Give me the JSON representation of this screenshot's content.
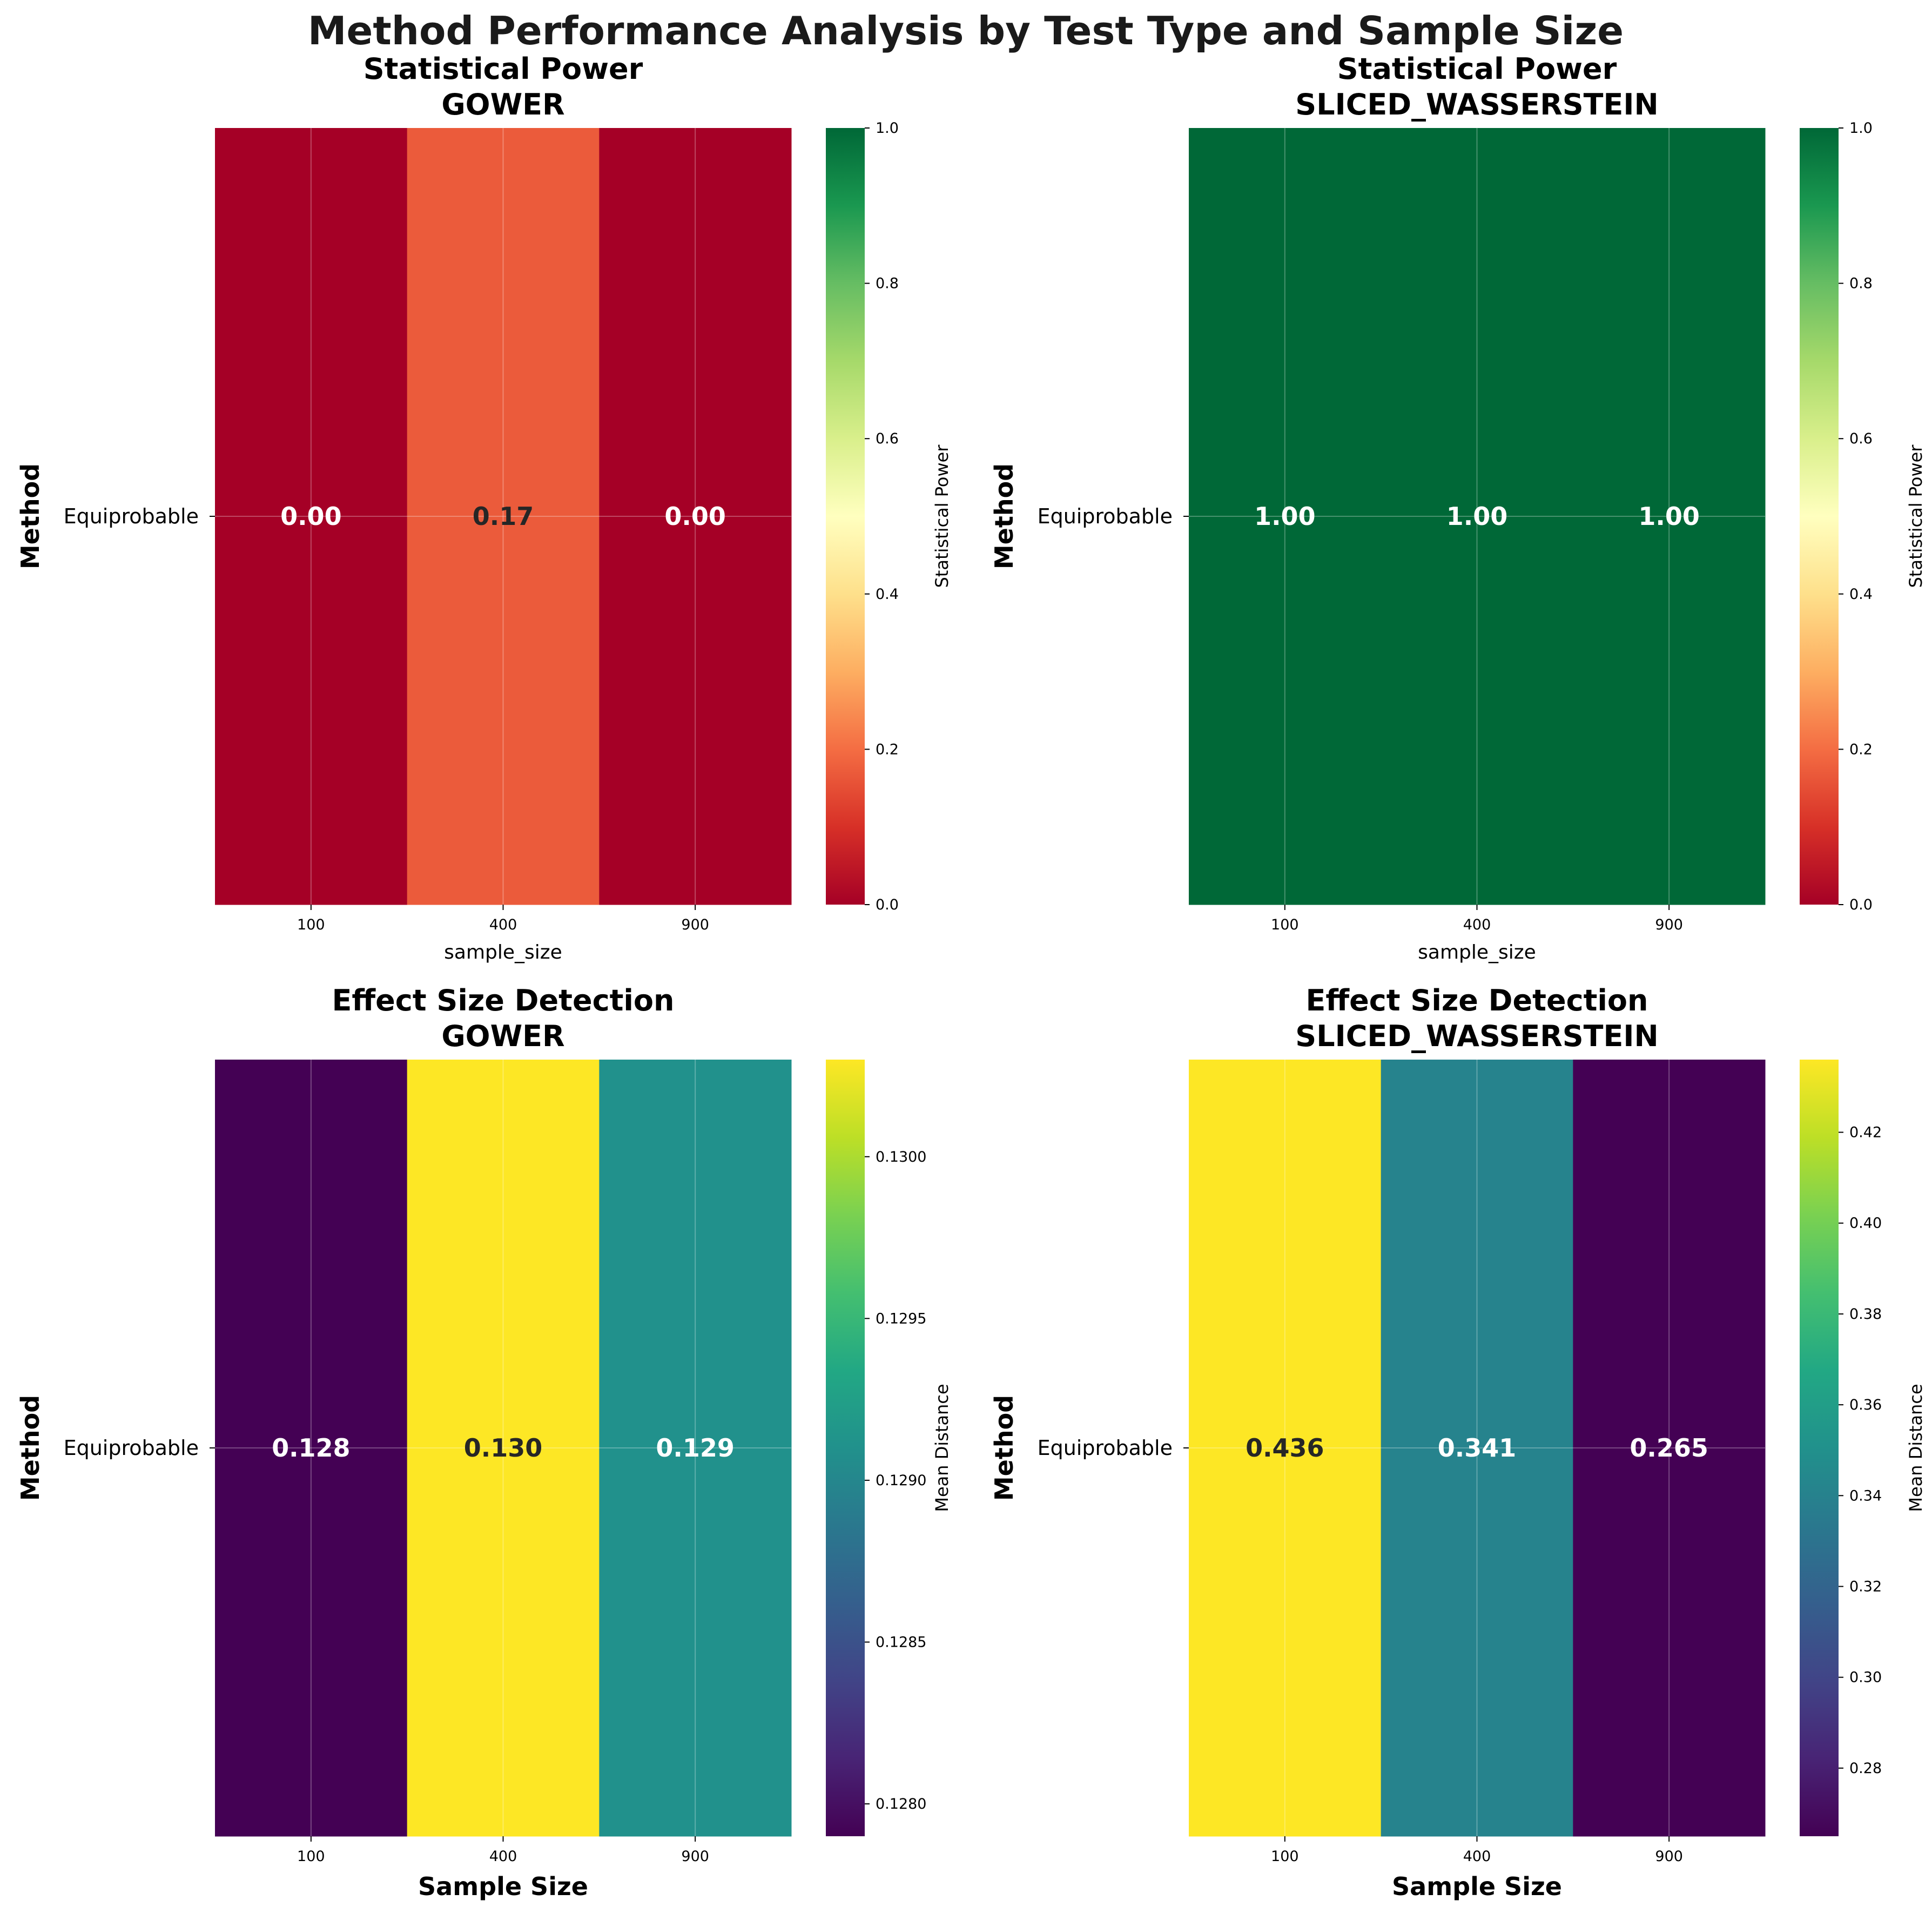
{
  "suptitle": "Method Performance Analysis by Test Type and Sample Size",
  "chart_data": [
    {
      "type": "heatmap",
      "title_line1": "Statistical Power",
      "title_line2": "GOWER",
      "ylabel": "Method",
      "xlabel": "sample_size",
      "xlabel_style": "small",
      "rows": [
        "Equiprobable"
      ],
      "columns": [
        "100",
        "400",
        "900"
      ],
      "values": [
        [
          0.0,
          0.17,
          0.0
        ]
      ],
      "labels": [
        "0.00",
        "0.17",
        "0.00"
      ],
      "colormap": "RdYlGn",
      "vmin": 0.0,
      "vmax": 1.0,
      "colorbar_label": "Statistical Power",
      "colorbar_ticks": [
        "0.0",
        "0.2",
        "0.4",
        "0.6",
        "0.8",
        "1.0"
      ],
      "colorbar_tick_values": [
        0.0,
        0.2,
        0.4,
        0.6,
        0.8,
        1.0
      ]
    },
    {
      "type": "heatmap",
      "title_line1": "Statistical Power",
      "title_line2": "SLICED_WASSERSTEIN",
      "ylabel": "Method",
      "xlabel": "sample_size",
      "xlabel_style": "small",
      "rows": [
        "Equiprobable"
      ],
      "columns": [
        "100",
        "400",
        "900"
      ],
      "values": [
        [
          1.0,
          1.0,
          1.0
        ]
      ],
      "labels": [
        "1.00",
        "1.00",
        "1.00"
      ],
      "colormap": "RdYlGn",
      "vmin": 0.0,
      "vmax": 1.0,
      "colorbar_label": "Statistical Power",
      "colorbar_ticks": [
        "0.0",
        "0.2",
        "0.4",
        "0.6",
        "0.8",
        "1.0"
      ],
      "colorbar_tick_values": [
        0.0,
        0.2,
        0.4,
        0.6,
        0.8,
        1.0
      ]
    },
    {
      "type": "heatmap",
      "title_line1": "Effect Size Detection",
      "title_line2": "GOWER",
      "ylabel": "Method",
      "xlabel": "Sample Size",
      "xlabel_style": "big",
      "rows": [
        "Equiprobable"
      ],
      "columns": [
        "100",
        "400",
        "900"
      ],
      "values": [
        [
          0.1279,
          0.1303,
          0.1291
        ]
      ],
      "labels": [
        "0.128",
        "0.130",
        "0.129"
      ],
      "colormap": "viridis",
      "vmin": 0.1279,
      "vmax": 0.1303,
      "colorbar_label": "Mean Distance",
      "colorbar_ticks": [
        "0.1280",
        "0.1285",
        "0.1290",
        "0.1295",
        "0.1300"
      ],
      "colorbar_tick_values": [
        0.128,
        0.1285,
        0.129,
        0.1295,
        0.13
      ]
    },
    {
      "type": "heatmap",
      "title_line1": "Effect Size Detection",
      "title_line2": "SLICED_WASSERSTEIN",
      "ylabel": "Method",
      "xlabel": "Sample Size",
      "xlabel_style": "big",
      "rows": [
        "Equiprobable"
      ],
      "columns": [
        "100",
        "400",
        "900"
      ],
      "values": [
        [
          0.436,
          0.341,
          0.265
        ]
      ],
      "labels": [
        "0.436",
        "0.341",
        "0.265"
      ],
      "colormap": "viridis",
      "vmin": 0.265,
      "vmax": 0.436,
      "colorbar_label": "Mean Distance",
      "colorbar_ticks": [
        "0.28",
        "0.30",
        "0.32",
        "0.34",
        "0.36",
        "0.38",
        "0.40",
        "0.42"
      ],
      "colorbar_tick_values": [
        0.28,
        0.3,
        0.32,
        0.34,
        0.36,
        0.38,
        0.4,
        0.42
      ]
    }
  ]
}
